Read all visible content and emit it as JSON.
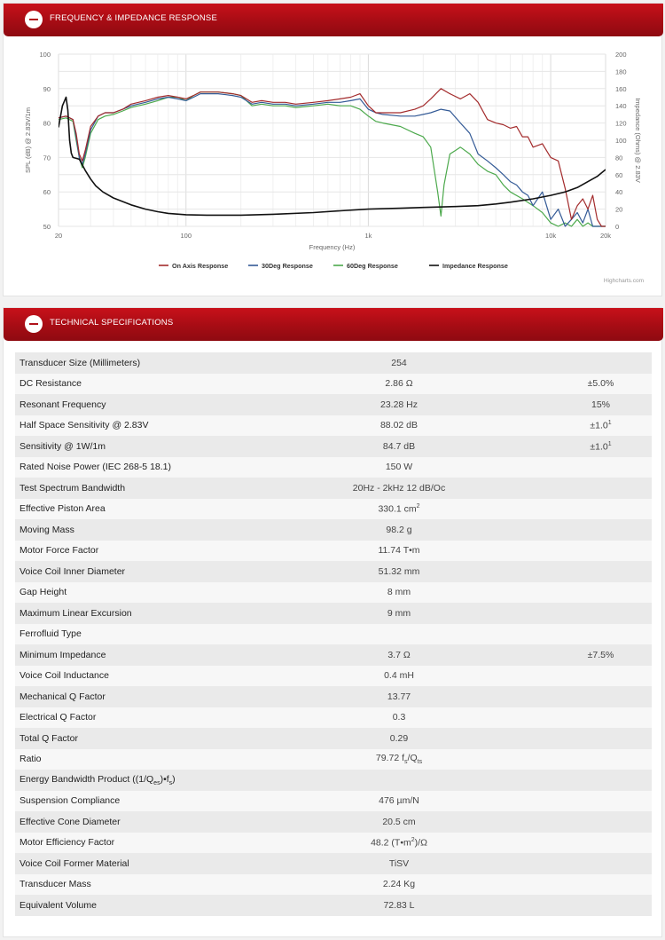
{
  "freq_panel": {
    "title": "Frequency & Impedance Response",
    "credits": "Highcharts.com"
  },
  "spec_panel": {
    "title": "Technical Specifications"
  },
  "colors": {
    "header_red": "#b0121a",
    "on_axis": "#a32b2c",
    "deg30": "#335a96",
    "deg60": "#4ca94c",
    "impedance": "#111111"
  },
  "chart_data": {
    "type": "line",
    "xlabel": "Frequency (Hz)",
    "ylabel": "SPL (dB) @ 2.83V/1m",
    "y2label": "Impedance (Ohms) @ 2.83V",
    "xscale": "log",
    "xlim": [
      20,
      20000
    ],
    "ylim": [
      50,
      100
    ],
    "y2lim": [
      0,
      200
    ],
    "x_ticks": [
      "20",
      "100",
      "1k",
      "10k",
      "20k"
    ],
    "y_ticks": [
      "50",
      "60",
      "70",
      "80",
      "90",
      "100"
    ],
    "y2_ticks": [
      "0",
      "20",
      "40",
      "60",
      "80",
      "100",
      "120",
      "140",
      "160",
      "180",
      "200"
    ],
    "legend_position": "bottom",
    "series": [
      {
        "name": "On Axis Response",
        "axis": "left",
        "x": [
          20,
          22,
          24,
          25,
          26,
          27,
          28,
          30,
          33,
          36,
          40,
          45,
          50,
          60,
          70,
          80,
          90,
          100,
          110,
          120,
          150,
          180,
          200,
          230,
          260,
          300,
          350,
          400,
          500,
          600,
          700,
          800,
          900,
          1000,
          1100,
          1200,
          1500,
          1800,
          2000,
          2200,
          2500,
          2800,
          3200,
          3600,
          4000,
          4500,
          5000,
          5500,
          6000,
          6500,
          7000,
          7500,
          8000,
          9000,
          10000,
          11000,
          12000,
          13000,
          14000,
          15000,
          16000,
          17000,
          18000,
          19000,
          20000
        ],
        "y": [
          81.5,
          82,
          81,
          77,
          71,
          69,
          72,
          79,
          82,
          83,
          83,
          84,
          85.5,
          86.5,
          87.5,
          88,
          87.5,
          87,
          88,
          89,
          89,
          88.5,
          88,
          86,
          86.5,
          86,
          86,
          85.5,
          86,
          86.5,
          87,
          87.5,
          88.5,
          85,
          83,
          83,
          83,
          84,
          85,
          87,
          90,
          88.5,
          87,
          88.5,
          86,
          81,
          80,
          79.5,
          78.5,
          79,
          76,
          76,
          73,
          74,
          70,
          69,
          61,
          52,
          56,
          58,
          55,
          59,
          52,
          50,
          50
        ]
      },
      {
        "name": "30Deg Response",
        "axis": "left",
        "x": [
          20,
          22,
          24,
          25,
          26,
          27,
          28,
          30,
          33,
          36,
          40,
          45,
          50,
          60,
          70,
          80,
          90,
          100,
          110,
          120,
          150,
          180,
          200,
          230,
          260,
          300,
          350,
          400,
          500,
          600,
          700,
          800,
          900,
          1000,
          1100,
          1200,
          1500,
          1800,
          2000,
          2200,
          2500,
          2800,
          3200,
          3600,
          4000,
          4500,
          5000,
          5500,
          6000,
          6500,
          7000,
          7500,
          8000,
          9000,
          10000,
          11000,
          12000,
          13000,
          14000,
          15000,
          16000,
          17000,
          18000,
          19000,
          20000
        ],
        "y": [
          81.5,
          82,
          81,
          76,
          70,
          68,
          71,
          78,
          82,
          83,
          83,
          84,
          85,
          86,
          87,
          87.5,
          87,
          86.5,
          87.5,
          88.5,
          88.5,
          88,
          87.5,
          85.5,
          86,
          85.5,
          85.5,
          85,
          85.5,
          86,
          86,
          86.5,
          87,
          84,
          83,
          82.5,
          82,
          82,
          82.5,
          83,
          84,
          83.5,
          80,
          77,
          71,
          69,
          67,
          65,
          63,
          62,
          60,
          59,
          56,
          60,
          52,
          55,
          50,
          52,
          54,
          51,
          55,
          50,
          50,
          50,
          50
        ]
      },
      {
        "name": "60Deg Response",
        "axis": "left",
        "x": [
          20,
          22,
          24,
          25,
          26,
          27,
          28,
          30,
          33,
          36,
          40,
          45,
          50,
          60,
          70,
          80,
          90,
          100,
          110,
          120,
          150,
          180,
          200,
          230,
          260,
          300,
          350,
          400,
          500,
          600,
          700,
          800,
          900,
          1000,
          1100,
          1200,
          1500,
          1800,
          2000,
          2200,
          2400,
          2500,
          2600,
          2800,
          3000,
          3200,
          3600,
          4000,
          4500,
          5000,
          5500,
          6000,
          7000,
          8000,
          9000,
          10000,
          11000,
          12000,
          13000,
          14000,
          15000,
          16000,
          17000,
          18000,
          19000,
          20000
        ],
        "y": [
          81,
          81.5,
          80.5,
          75,
          70,
          67,
          70,
          77,
          81,
          82,
          82.5,
          83.5,
          84.5,
          85.5,
          86.5,
          87.5,
          87.5,
          86.5,
          88,
          89,
          89,
          88.5,
          88,
          85,
          85.5,
          85,
          85,
          84.5,
          85,
          85.5,
          85,
          85,
          84,
          82,
          80.5,
          80,
          79,
          77,
          76,
          73,
          60,
          53,
          62,
          71,
          72,
          73,
          71,
          68,
          66,
          65,
          62,
          60,
          58,
          56,
          54,
          51,
          50,
          51,
          50,
          52,
          50,
          51,
          50,
          50,
          50,
          50
        ]
      },
      {
        "name": "Impedance Response",
        "axis": "right",
        "x": [
          20,
          21,
          22,
          22.5,
          23,
          23.5,
          24,
          25,
          26,
          28,
          30,
          32,
          35,
          40,
          50,
          60,
          70,
          80,
          100,
          130,
          200,
          300,
          500,
          700,
          1000,
          1500,
          2000,
          3000,
          4000,
          5000,
          6000,
          8000,
          10000,
          12000,
          14000,
          16000,
          18000,
          20000
        ],
        "y": [
          115,
          140,
          150,
          135,
          100,
          85,
          80,
          79,
          78,
          65,
          55,
          47,
          40,
          33,
          25,
          20,
          17,
          15,
          13.5,
          13,
          13,
          14,
          16,
          18,
          20,
          21,
          22,
          23,
          24,
          26,
          28,
          32,
          36,
          40,
          45,
          52,
          58,
          66
        ]
      }
    ]
  },
  "specs": {
    "rows": [
      {
        "name": "Transducer Size (Millimeters)",
        "value": "254",
        "tol": ""
      },
      {
        "name": "DC Resistance",
        "value": "2.86 Ω",
        "tol": "±5.0%"
      },
      {
        "name": "Resonant Frequency",
        "value": "23.28 Hz",
        "tol": "15%"
      },
      {
        "name": "Half Space Sensitivity @ 2.83V",
        "value": "88.02 dB",
        "tol": "±1.0",
        "tol_sup": "1"
      },
      {
        "name": "Sensitivity @ 1W/1m",
        "value": "84.7 dB",
        "tol": "±1.0",
        "tol_sup": "1"
      },
      {
        "name": "Rated Noise Power (IEC 268-5 18.1)",
        "value": "150 W",
        "tol": ""
      },
      {
        "name": "Test Spectrum Bandwidth",
        "value": "20Hz - 2kHz 12 dB/Oc",
        "tol": ""
      },
      {
        "name": "Effective Piston Area",
        "value": "330.1 cm",
        "value_sup": "2",
        "tol": ""
      },
      {
        "name": "Moving Mass",
        "value": "98.2 g",
        "tol": ""
      },
      {
        "name": "Motor Force Factor",
        "value": "11.74 T•m",
        "tol": ""
      },
      {
        "name": "Voice Coil Inner Diameter",
        "value": "51.32 mm",
        "tol": ""
      },
      {
        "name": "Gap Height",
        "value": "8 mm",
        "tol": ""
      },
      {
        "name": "Maximum Linear Excursion",
        "value": "9 mm",
        "tol": ""
      },
      {
        "name": "Ferrofluid Type",
        "value": "",
        "tol": ""
      },
      {
        "name": "Minimum Impedance",
        "value": "3.7 Ω",
        "tol": "±7.5%"
      },
      {
        "name": "Voice Coil Inductance",
        "value": "0.4 mH",
        "tol": ""
      },
      {
        "name": "Mechanical Q Factor",
        "value": "13.77",
        "tol": ""
      },
      {
        "name": "Electrical Q Factor",
        "value": "0.3",
        "tol": ""
      },
      {
        "name": "Total Q Factor",
        "value": "0.29",
        "tol": ""
      },
      {
        "name": "Ratio",
        "value_parts": [
          "79.72 f",
          "s",
          "/Q",
          "ts"
        ],
        "tol": ""
      },
      {
        "name_parts": [
          "Energy Bandwidth Product ((1/Q",
          "es",
          ")•f",
          "s",
          ")"
        ],
        "value": "",
        "tol": ""
      },
      {
        "name": "Suspension Compliance",
        "value": "476 µm/N",
        "tol": ""
      },
      {
        "name": "Effective Cone Diameter",
        "value": "20.5 cm",
        "tol": ""
      },
      {
        "name": "Motor Efficiency Factor",
        "value_parts": [
          "48.2 (T•m",
          "2",
          ")/Ω"
        ],
        "tol": ""
      },
      {
        "name": "Voice Coil Former Material",
        "value": "TiSV",
        "tol": ""
      },
      {
        "name": "Transducer Mass",
        "value": "2.24 Kg",
        "tol": ""
      },
      {
        "name": "Equivalent Volume",
        "value": "72.83 L",
        "tol": ""
      }
    ]
  }
}
